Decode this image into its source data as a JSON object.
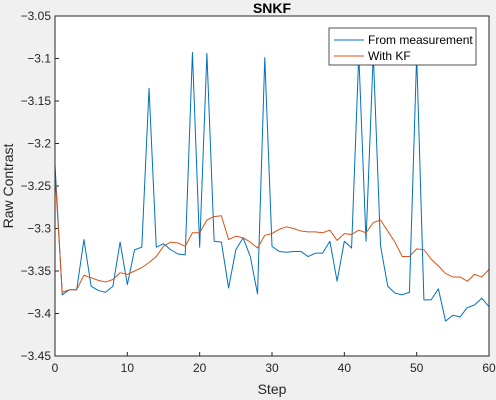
{
  "chart_data": {
    "type": "line",
    "title": "SNKF",
    "xlabel": "Step",
    "ylabel": "Raw Contrast",
    "xlim": [
      0,
      60
    ],
    "ylim": [
      -3.45,
      -3.05
    ],
    "xticks": [
      "0",
      "10",
      "20",
      "30",
      "40",
      "50",
      "60"
    ],
    "yticks": [
      "-3.05",
      "-3.1",
      "-3.15",
      "-3.2",
      "-3.25",
      "-3.3",
      "-3.35",
      "-3.4",
      "-3.45"
    ],
    "grid": false,
    "legend_position": "top-right",
    "series": [
      {
        "name": "From measurement",
        "color": "#0072BD",
        "x": [
          0,
          1,
          2,
          3,
          4,
          5,
          6,
          7,
          8,
          9,
          10,
          11,
          12,
          13,
          14,
          15,
          16,
          17,
          18,
          19,
          20,
          21,
          22,
          23,
          24,
          25,
          26,
          27,
          28,
          29,
          30,
          31,
          32,
          33,
          34,
          35,
          36,
          37,
          38,
          39,
          40,
          41,
          42,
          43,
          44,
          45,
          46,
          47,
          48,
          49,
          50,
          51,
          52,
          53,
          54,
          55,
          56,
          57,
          58,
          59,
          60
        ],
        "values": [
          -3.225,
          -3.378,
          -3.372,
          -3.372,
          -3.313,
          -3.368,
          -3.373,
          -3.375,
          -3.368,
          -3.316,
          -3.366,
          -3.325,
          -3.322,
          -3.135,
          -3.322,
          -3.318,
          -3.325,
          -3.33,
          -3.331,
          -3.093,
          -3.322,
          -3.094,
          -3.315,
          -3.316,
          -3.37,
          -3.325,
          -3.311,
          -3.333,
          -3.377,
          -3.099,
          -3.321,
          -3.327,
          -3.328,
          -3.327,
          -3.327,
          -3.333,
          -3.329,
          -3.329,
          -3.315,
          -3.362,
          -3.315,
          -3.323,
          -3.095,
          -3.315,
          -3.094,
          -3.32,
          -3.368,
          -3.376,
          -3.378,
          -3.375,
          -3.096,
          -3.384,
          -3.384,
          -3.371,
          -3.409,
          -3.402,
          -3.404,
          -3.393,
          -3.39,
          -3.382,
          -3.392
        ]
      },
      {
        "name": "With KF",
        "color": "#D95319",
        "x": [
          0,
          1,
          2,
          3,
          4,
          5,
          6,
          7,
          8,
          9,
          10,
          11,
          12,
          13,
          14,
          15,
          16,
          17,
          18,
          19,
          20,
          21,
          22,
          23,
          24,
          25,
          26,
          27,
          28,
          29,
          30,
          31,
          32,
          33,
          34,
          35,
          36,
          37,
          38,
          39,
          40,
          41,
          42,
          43,
          44,
          45,
          46,
          47,
          48,
          49,
          50,
          51,
          52,
          53,
          54,
          55,
          56,
          57,
          58,
          59,
          60
        ],
        "values": [
          -3.235,
          -3.375,
          -3.372,
          -3.372,
          -3.355,
          -3.358,
          -3.361,
          -3.363,
          -3.36,
          -3.352,
          -3.354,
          -3.35,
          -3.346,
          -3.34,
          -3.333,
          -3.321,
          -3.316,
          -3.317,
          -3.321,
          -3.305,
          -3.305,
          -3.29,
          -3.286,
          -3.285,
          -3.313,
          -3.309,
          -3.311,
          -3.316,
          -3.323,
          -3.308,
          -3.306,
          -3.301,
          -3.298,
          -3.3,
          -3.303,
          -3.304,
          -3.304,
          -3.305,
          -3.302,
          -3.314,
          -3.306,
          -3.307,
          -3.302,
          -3.305,
          -3.293,
          -3.29,
          -3.303,
          -3.316,
          -3.333,
          -3.333,
          -3.324,
          -3.325,
          -3.336,
          -3.344,
          -3.353,
          -3.357,
          -3.357,
          -3.362,
          -3.354,
          -3.357,
          -3.348
        ]
      }
    ]
  }
}
